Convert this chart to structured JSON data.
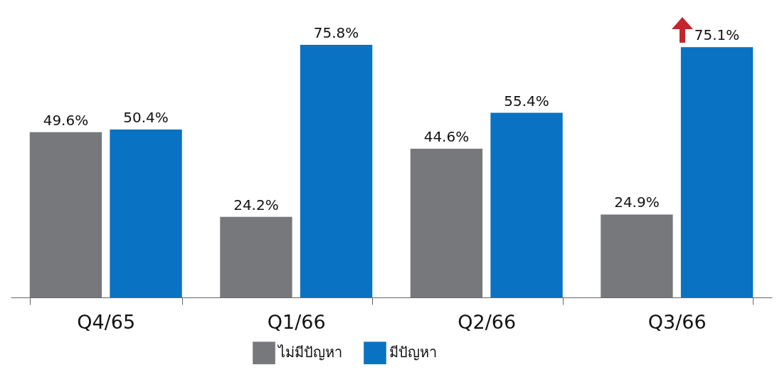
{
  "chart_data": {
    "type": "bar",
    "categories": [
      "Q4/65",
      "Q1/66",
      "Q2/66",
      "Q3/66"
    ],
    "series": [
      {
        "name": "ไม่มีปัญหา",
        "color": "#77787b",
        "values": [
          49.6,
          24.2,
          44.6,
          24.9
        ],
        "value_labels": [
          "49.6%",
          "24.2%",
          "44.6%",
          "24.9%"
        ]
      },
      {
        "name": "มีปัญหา",
        "color": "#0a72c2",
        "values": [
          50.4,
          75.8,
          55.4,
          75.1
        ],
        "value_labels": [
          "50.4%",
          "75.8%",
          "55.4%",
          "75.1%"
        ]
      }
    ],
    "tick_labels": "x",
    "grid": false,
    "legend": "bottom"
  }
}
